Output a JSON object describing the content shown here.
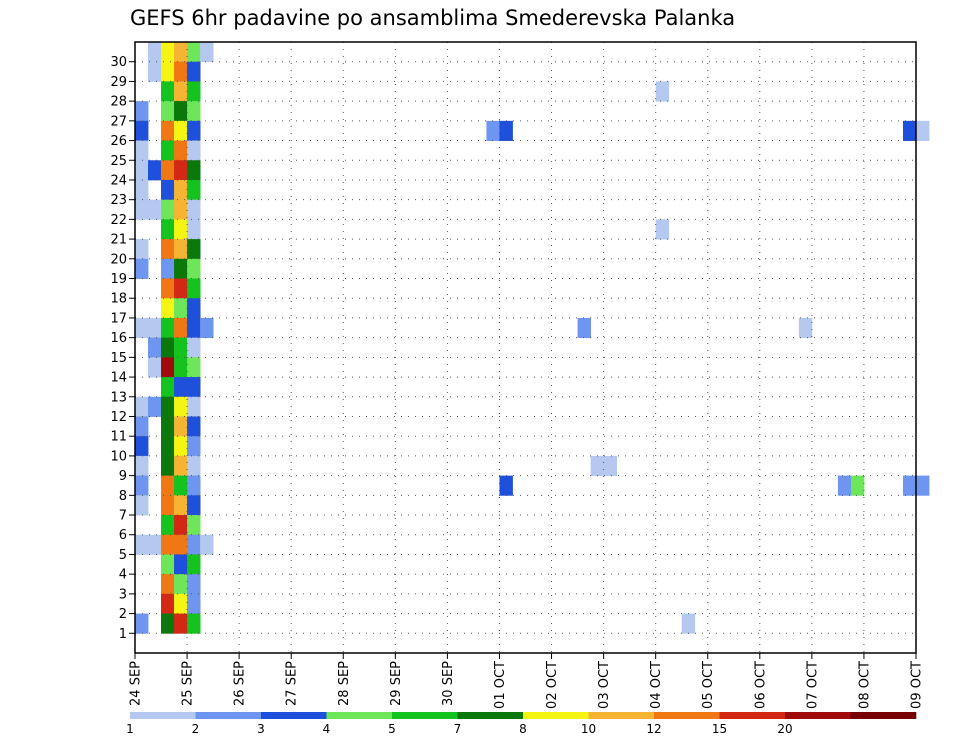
{
  "chart_data": {
    "type": "heatmap",
    "title": "GEFS 6hr padavine po ansamblima Smederevska Palanka",
    "x_tick_labels": [
      "24 SEP",
      "25 SEP",
      "26 SEP",
      "27 SEP",
      "28 SEP",
      "29 SEP",
      "30 SEP",
      "01 OCT",
      "02 OCT",
      "03 OCT",
      "04 OCT",
      "05 OCT",
      "06 OCT",
      "07 OCT",
      "08 OCT",
      "09 OCT"
    ],
    "y_tick_labels": [
      "1",
      "2",
      "3",
      "4",
      "5",
      "6",
      "7",
      "8",
      "9",
      "10",
      "11",
      "12",
      "13",
      "14",
      "15",
      "16",
      "17",
      "18",
      "19",
      "20",
      "21",
      "22",
      "23",
      "24",
      "25",
      "26",
      "27",
      "28",
      "29",
      "30"
    ],
    "time_steps_per_day": 4,
    "members": 31,
    "grid": true,
    "legend": {
      "position": "bottom",
      "labels": [
        "1",
        "2",
        "3",
        "4",
        "5",
        "7",
        "8",
        "10",
        "12",
        "15",
        "20"
      ],
      "colors": [
        "#b4c8f0",
        "#6e96f0",
        "#1e50dc",
        "#6ee65a",
        "#14c31e",
        "#0a780a",
        "#f5f514",
        "#f5b432",
        "#f07814",
        "#d22814",
        "#a00a0a",
        "#780000"
      ]
    },
    "cells": [
      {
        "t": 1,
        "m": 30,
        "c": 0
      },
      {
        "t": 2,
        "m": 30,
        "c": 6
      },
      {
        "t": 3,
        "m": 30,
        "c": 7
      },
      {
        "t": 4,
        "m": 30,
        "c": 3
      },
      {
        "t": 5,
        "m": 30,
        "c": 0
      },
      {
        "t": 1,
        "m": 29,
        "c": 0
      },
      {
        "t": 2,
        "m": 29,
        "c": 6
      },
      {
        "t": 3,
        "m": 29,
        "c": 8
      },
      {
        "t": 4,
        "m": 29,
        "c": 2
      },
      {
        "t": 2,
        "m": 28,
        "c": 4
      },
      {
        "t": 3,
        "m": 28,
        "c": 7
      },
      {
        "t": 4,
        "m": 28,
        "c": 4
      },
      {
        "t": 40,
        "m": 28,
        "c": 0
      },
      {
        "t": 0,
        "m": 27,
        "c": 1
      },
      {
        "t": 2,
        "m": 27,
        "c": 3
      },
      {
        "t": 3,
        "m": 27,
        "c": 5
      },
      {
        "t": 4,
        "m": 27,
        "c": 3
      },
      {
        "t": 0,
        "m": 26,
        "c": 2
      },
      {
        "t": 2,
        "m": 26,
        "c": 8
      },
      {
        "t": 3,
        "m": 26,
        "c": 6
      },
      {
        "t": 4,
        "m": 26,
        "c": 2
      },
      {
        "t": 27,
        "m": 26,
        "c": 1
      },
      {
        "t": 28,
        "m": 26,
        "c": 2
      },
      {
        "t": 59,
        "m": 26,
        "c": 2
      },
      {
        "t": 60,
        "m": 26,
        "c": 0
      },
      {
        "t": 0,
        "m": 25,
        "c": 0
      },
      {
        "t": 2,
        "m": 25,
        "c": 4
      },
      {
        "t": 3,
        "m": 25,
        "c": 8
      },
      {
        "t": 4,
        "m": 25,
        "c": 0
      },
      {
        "t": 0,
        "m": 24,
        "c": 0
      },
      {
        "t": 1,
        "m": 24,
        "c": 2
      },
      {
        "t": 2,
        "m": 24,
        "c": 8
      },
      {
        "t": 3,
        "m": 24,
        "c": 9
      },
      {
        "t": 4,
        "m": 24,
        "c": 5
      },
      {
        "t": 0,
        "m": 23,
        "c": 0
      },
      {
        "t": 2,
        "m": 23,
        "c": 2
      },
      {
        "t": 3,
        "m": 23,
        "c": 7
      },
      {
        "t": 4,
        "m": 23,
        "c": 4
      },
      {
        "t": 0,
        "m": 22,
        "c": 0
      },
      {
        "t": 1,
        "m": 22,
        "c": 0
      },
      {
        "t": 2,
        "m": 22,
        "c": 3
      },
      {
        "t": 3,
        "m": 22,
        "c": 7
      },
      {
        "t": 4,
        "m": 22,
        "c": 0
      },
      {
        "t": 2,
        "m": 21,
        "c": 4
      },
      {
        "t": 3,
        "m": 21,
        "c": 6
      },
      {
        "t": 4,
        "m": 21,
        "c": 0
      },
      {
        "t": 40,
        "m": 21,
        "c": 0
      },
      {
        "t": 0,
        "m": 20,
        "c": 0
      },
      {
        "t": 2,
        "m": 20,
        "c": 8
      },
      {
        "t": 3,
        "m": 20,
        "c": 7
      },
      {
        "t": 4,
        "m": 20,
        "c": 5
      },
      {
        "t": 0,
        "m": 19,
        "c": 1
      },
      {
        "t": 2,
        "m": 19,
        "c": 1
      },
      {
        "t": 3,
        "m": 19,
        "c": 5
      },
      {
        "t": 4,
        "m": 19,
        "c": 3
      },
      {
        "t": 2,
        "m": 18,
        "c": 8
      },
      {
        "t": 3,
        "m": 18,
        "c": 9
      },
      {
        "t": 4,
        "m": 18,
        "c": 4
      },
      {
        "t": 2,
        "m": 17,
        "c": 6
      },
      {
        "t": 3,
        "m": 17,
        "c": 3
      },
      {
        "t": 4,
        "m": 17,
        "c": 2
      },
      {
        "t": 0,
        "m": 16,
        "c": 0
      },
      {
        "t": 1,
        "m": 16,
        "c": 0
      },
      {
        "t": 2,
        "m": 16,
        "c": 4
      },
      {
        "t": 3,
        "m": 16,
        "c": 8
      },
      {
        "t": 4,
        "m": 16,
        "c": 2
      },
      {
        "t": 5,
        "m": 16,
        "c": 1
      },
      {
        "t": 34,
        "m": 16,
        "c": 1
      },
      {
        "t": 51,
        "m": 16,
        "c": 0
      },
      {
        "t": 1,
        "m": 15,
        "c": 1
      },
      {
        "t": 2,
        "m": 15,
        "c": 5
      },
      {
        "t": 3,
        "m": 15,
        "c": 4
      },
      {
        "t": 4,
        "m": 15,
        "c": 0
      },
      {
        "t": 1,
        "m": 14,
        "c": 0
      },
      {
        "t": 2,
        "m": 14,
        "c": 10
      },
      {
        "t": 3,
        "m": 14,
        "c": 4
      },
      {
        "t": 4,
        "m": 14,
        "c": 3
      },
      {
        "t": 2,
        "m": 13,
        "c": 4
      },
      {
        "t": 3,
        "m": 13,
        "c": 2
      },
      {
        "t": 4,
        "m": 13,
        "c": 2
      },
      {
        "t": 0,
        "m": 12,
        "c": 0
      },
      {
        "t": 1,
        "m": 12,
        "c": 1
      },
      {
        "t": 2,
        "m": 12,
        "c": 5
      },
      {
        "t": 3,
        "m": 12,
        "c": 6
      },
      {
        "t": 4,
        "m": 12,
        "c": 0
      },
      {
        "t": 0,
        "m": 11,
        "c": 1
      },
      {
        "t": 2,
        "m": 11,
        "c": 5
      },
      {
        "t": 3,
        "m": 11,
        "c": 7
      },
      {
        "t": 4,
        "m": 11,
        "c": 2
      },
      {
        "t": 0,
        "m": 10,
        "c": 2
      },
      {
        "t": 2,
        "m": 10,
        "c": 5
      },
      {
        "t": 3,
        "m": 10,
        "c": 6
      },
      {
        "t": 4,
        "m": 10,
        "c": 1
      },
      {
        "t": 0,
        "m": 9,
        "c": 0
      },
      {
        "t": 2,
        "m": 9,
        "c": 5
      },
      {
        "t": 3,
        "m": 9,
        "c": 7
      },
      {
        "t": 4,
        "m": 9,
        "c": 0
      },
      {
        "t": 35,
        "m": 9,
        "c": 0
      },
      {
        "t": 36,
        "m": 9,
        "c": 0
      },
      {
        "t": 0,
        "m": 8,
        "c": 1
      },
      {
        "t": 2,
        "m": 8,
        "c": 8
      },
      {
        "t": 3,
        "m": 8,
        "c": 4
      },
      {
        "t": 4,
        "m": 8,
        "c": 1
      },
      {
        "t": 28,
        "m": 8,
        "c": 2
      },
      {
        "t": 54,
        "m": 8,
        "c": 1
      },
      {
        "t": 55,
        "m": 8,
        "c": 3
      },
      {
        "t": 59,
        "m": 8,
        "c": 1
      },
      {
        "t": 60,
        "m": 8,
        "c": 1
      },
      {
        "t": 0,
        "m": 7,
        "c": 0
      },
      {
        "t": 2,
        "m": 7,
        "c": 8
      },
      {
        "t": 3,
        "m": 7,
        "c": 7
      },
      {
        "t": 4,
        "m": 7,
        "c": 2
      },
      {
        "t": 2,
        "m": 6,
        "c": 4
      },
      {
        "t": 3,
        "m": 6,
        "c": 9
      },
      {
        "t": 4,
        "m": 6,
        "c": 3
      },
      {
        "t": 0,
        "m": 5,
        "c": 0
      },
      {
        "t": 1,
        "m": 5,
        "c": 0
      },
      {
        "t": 2,
        "m": 5,
        "c": 8
      },
      {
        "t": 3,
        "m": 5,
        "c": 8
      },
      {
        "t": 4,
        "m": 5,
        "c": 1
      },
      {
        "t": 5,
        "m": 5,
        "c": 0
      },
      {
        "t": 2,
        "m": 4,
        "c": 3
      },
      {
        "t": 3,
        "m": 4,
        "c": 2
      },
      {
        "t": 4,
        "m": 4,
        "c": 4
      },
      {
        "t": 2,
        "m": 3,
        "c": 8
      },
      {
        "t": 3,
        "m": 3,
        "c": 3
      },
      {
        "t": 4,
        "m": 3,
        "c": 1
      },
      {
        "t": 2,
        "m": 2,
        "c": 9
      },
      {
        "t": 3,
        "m": 2,
        "c": 6
      },
      {
        "t": 4,
        "m": 2,
        "c": 1
      },
      {
        "t": 0,
        "m": 1,
        "c": 1
      },
      {
        "t": 2,
        "m": 1,
        "c": 5
      },
      {
        "t": 3,
        "m": 1,
        "c": 9
      },
      {
        "t": 4,
        "m": 1,
        "c": 4
      },
      {
        "t": 42,
        "m": 1,
        "c": 0
      }
    ]
  }
}
